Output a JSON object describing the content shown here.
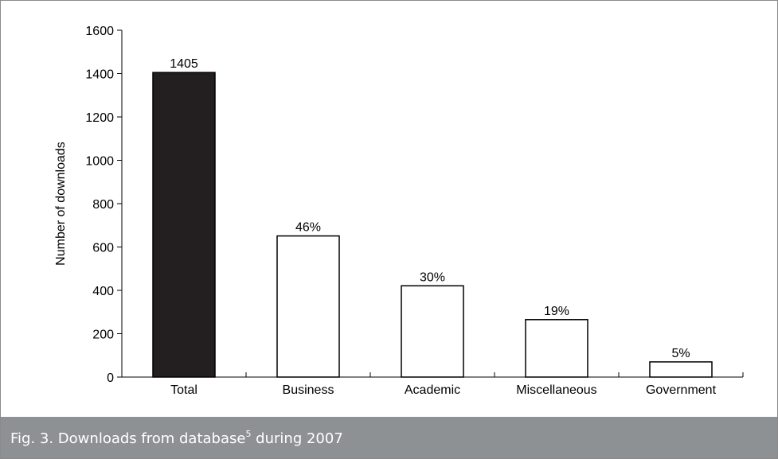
{
  "chart_data": {
    "type": "bar",
    "categories": [
      "Total",
      "Business",
      "Academic",
      "Miscellaneous",
      "Government"
    ],
    "values": [
      1405,
      651,
      421,
      265,
      70
    ],
    "data_labels": [
      "1405",
      "46%",
      "30%",
      "19%",
      "5%"
    ],
    "bar_colors": [
      "#231f20",
      "#ffffff",
      "#ffffff",
      "#ffffff",
      "#ffffff"
    ],
    "bar_stroke": "#000000",
    "xlabel": "",
    "ylabel": "Number of downloads",
    "ylim": [
      0,
      1600
    ],
    "yticks": [
      0,
      200,
      400,
      600,
      800,
      1000,
      1200,
      1400,
      1600
    ],
    "grid": false,
    "legend": "none"
  },
  "caption": {
    "prefix": "Fig. 3. Downloads from database",
    "superscript": "5",
    "suffix": " during 2007",
    "background": "#8e9194",
    "text_color": "#ffffff"
  }
}
